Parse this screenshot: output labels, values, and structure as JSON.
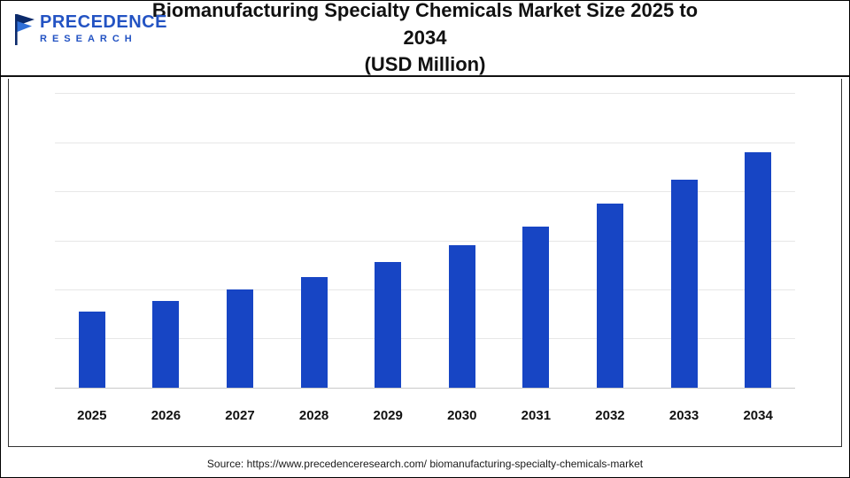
{
  "header": {
    "logo_line1": "PRECEDENCE",
    "logo_line2": "RESEARCH",
    "title_line1": "Biomanufacturing Specialty Chemicals Market Size 2025 to 2034",
    "title_line2": "(USD Million)"
  },
  "chart_data": {
    "type": "bar",
    "title": "Biomanufacturing Specialty Chemicals Market Size 2025 to 2034 (USD Million)",
    "categories": [
      "2025",
      "2026",
      "2027",
      "2028",
      "2029",
      "2030",
      "2031",
      "2032",
      "2033",
      "2034"
    ],
    "values": [
      88,
      100,
      113,
      128,
      145,
      164,
      186,
      212,
      240,
      272
    ],
    "values_note": "no numeric axis labels shown; values estimated from bar heights (relative units)",
    "xlabel": "",
    "ylabel": "",
    "ylim": [
      0,
      340
    ],
    "grid": true,
    "legend": false,
    "bar_color": "#1745c4"
  },
  "footer": {
    "source": "Source: https://www.precedenceresearch.com/ biomanufacturing-specialty-chemicals-market"
  }
}
